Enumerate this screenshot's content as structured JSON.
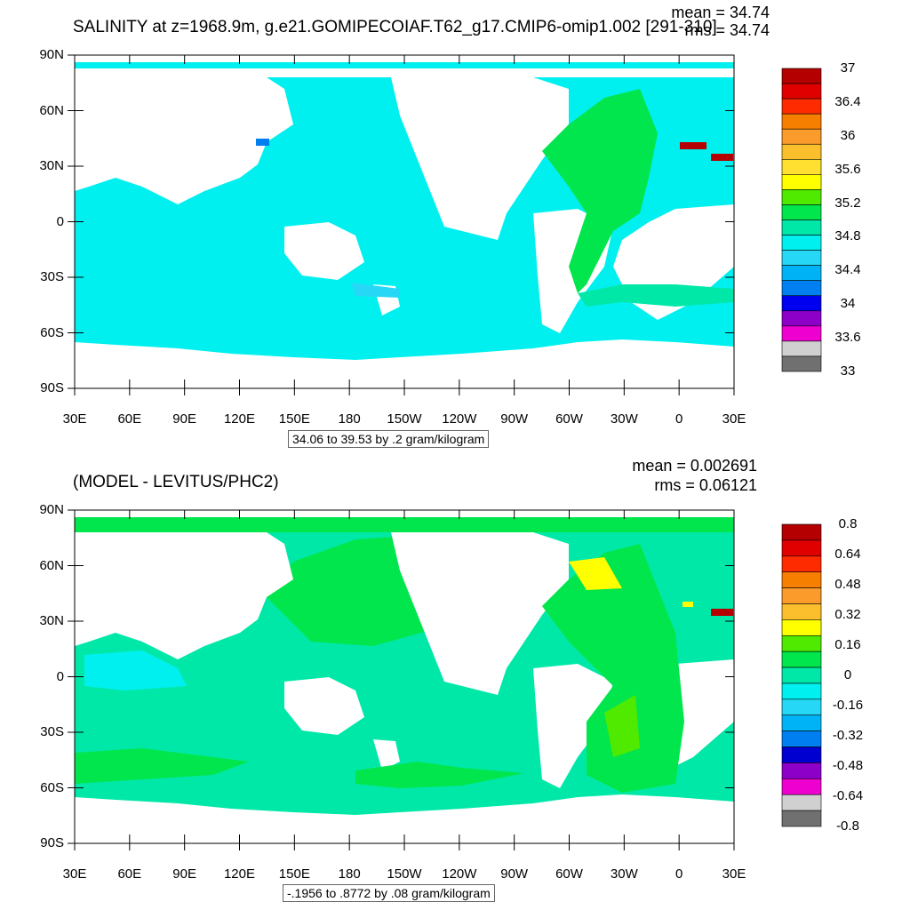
{
  "panels": [
    {
      "title": "SALINITY at z=1968.9m, g.e21.GOMIPECOIAF.T62_g17.CMIP6-omip1.002 [291-310]",
      "mean": "mean = 34.74",
      "rms": "rms = 34.74",
      "minmax": "34.06 to 39.53 by .2 gram/kilogram",
      "lat_labels": [
        "90N",
        "60N",
        "30N",
        "0",
        "30S",
        "60S",
        "90S"
      ],
      "lon_labels": [
        "30E",
        "60E",
        "90E",
        "120E",
        "150E",
        "180",
        "150W",
        "120W",
        "90W",
        "60W",
        "30W",
        "0",
        "30E"
      ],
      "colorbar": {
        "labels": [
          "37",
          "36.4",
          "36",
          "35.6",
          "35.2",
          "34.8",
          "34.4",
          "34",
          "33.6",
          "33"
        ],
        "colors": [
          "#b40000",
          "#e00000",
          "#ff2b00",
          "#f77f00",
          "#fb9b2b",
          "#fbbf2d",
          "#ffe030",
          "#ffff00",
          "#4fea00",
          "#00e64c",
          "#00e8a8",
          "#00f0f0",
          "#27d8f6",
          "#00b2f6",
          "#0080f0",
          "#0000f0",
          "#8c00c8",
          "#ee00d0",
          "#d0d0d0",
          "#707070"
        ]
      },
      "ocean_color": "#00f0f0"
    },
    {
      "title": "(MODEL - LEVITUS/PHC2)",
      "mean": "mean = 0.002691",
      "rms": "rms = 0.06121",
      "minmax": "-.1956 to .8772 by .08 gram/kilogram",
      "lat_labels": [
        "90N",
        "60N",
        "30N",
        "0",
        "30S",
        "60S",
        "90S"
      ],
      "lon_labels": [
        "30E",
        "60E",
        "90E",
        "120E",
        "150E",
        "180",
        "150W",
        "120W",
        "90W",
        "60W",
        "30W",
        "0",
        "30E"
      ],
      "colorbar": {
        "labels": [
          "0.8",
          "0.64",
          "0.48",
          "0.32",
          "0.16",
          "0",
          "-0.16",
          "-0.32",
          "-0.48",
          "-0.64",
          "-0.8"
        ],
        "colors": [
          "#b40000",
          "#e00000",
          "#ff2b00",
          "#f77f00",
          "#fb9b2b",
          "#fbbf2d",
          "#ffff00",
          "#4fea00",
          "#00e64c",
          "#00e8a8",
          "#00f0f0",
          "#27d8f6",
          "#00b2f6",
          "#0080f0",
          "#0000d0",
          "#8c00c8",
          "#ee00d0",
          "#d0d0d0",
          "#707070"
        ]
      },
      "ocean_color": "#00e8a8"
    }
  ]
}
